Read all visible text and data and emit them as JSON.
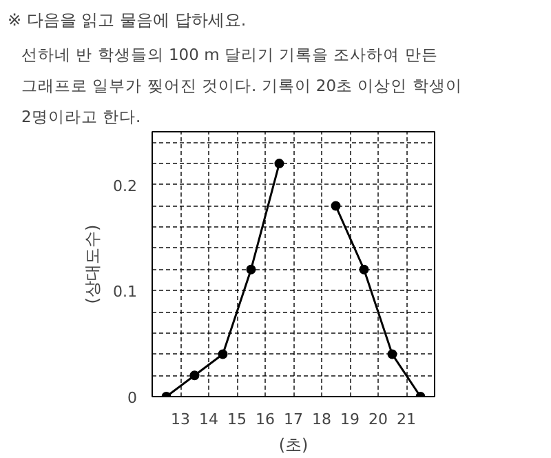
{
  "chart_data": {
    "type": "line",
    "title": "※ 다음을 읽고 물음에 답하세요.",
    "subtitle": "선하네 반 학생들의 100 m  달리기 기록을 조사하여 만든\n그래프로 일부가 찢어진 것이다. 기록이 20초 이상인 학생이\n2명이라고 한다.",
    "ylabel": "(상대도수)",
    "xlabel": "(초)",
    "x": [
      12.5,
      13.5,
      14.5,
      15.5,
      16.5,
      17.5,
      18.5,
      19.5,
      20.5,
      21.5
    ],
    "series": [
      {
        "color": "#000000",
        "values": [
          0,
          0.02,
          0.04,
          0.12,
          0.22,
          null,
          0.18,
          0.12,
          0.04,
          0
        ]
      }
    ],
    "xlim": [
      12,
      22
    ],
    "xticks": [
      {
        "value": 12,
        "label": null
      },
      13,
      14,
      15,
      16,
      17,
      18,
      19,
      20,
      21,
      {
        "value": 22,
        "label": null
      }
    ],
    "ylim": [
      0,
      0.25
    ],
    "yticks": [
      0,
      {
        "value": 0.02,
        "label": null
      },
      {
        "value": 0.04,
        "label": null
      },
      {
        "value": 0.06,
        "label": null
      },
      {
        "value": 0.08,
        "label": null
      },
      0.1,
      {
        "value": 0.12,
        "label": null
      },
      {
        "value": 0.14,
        "label": null
      },
      {
        "value": 0.16,
        "label": null
      },
      {
        "value": 0.18,
        "label": null
      },
      0.2,
      {
        "value": 0.22,
        "label": null
      },
      {
        "value": 0.24,
        "label": null
      }
    ],
    "grid": true,
    "marker": "circle",
    "line_style": "solid"
  }
}
